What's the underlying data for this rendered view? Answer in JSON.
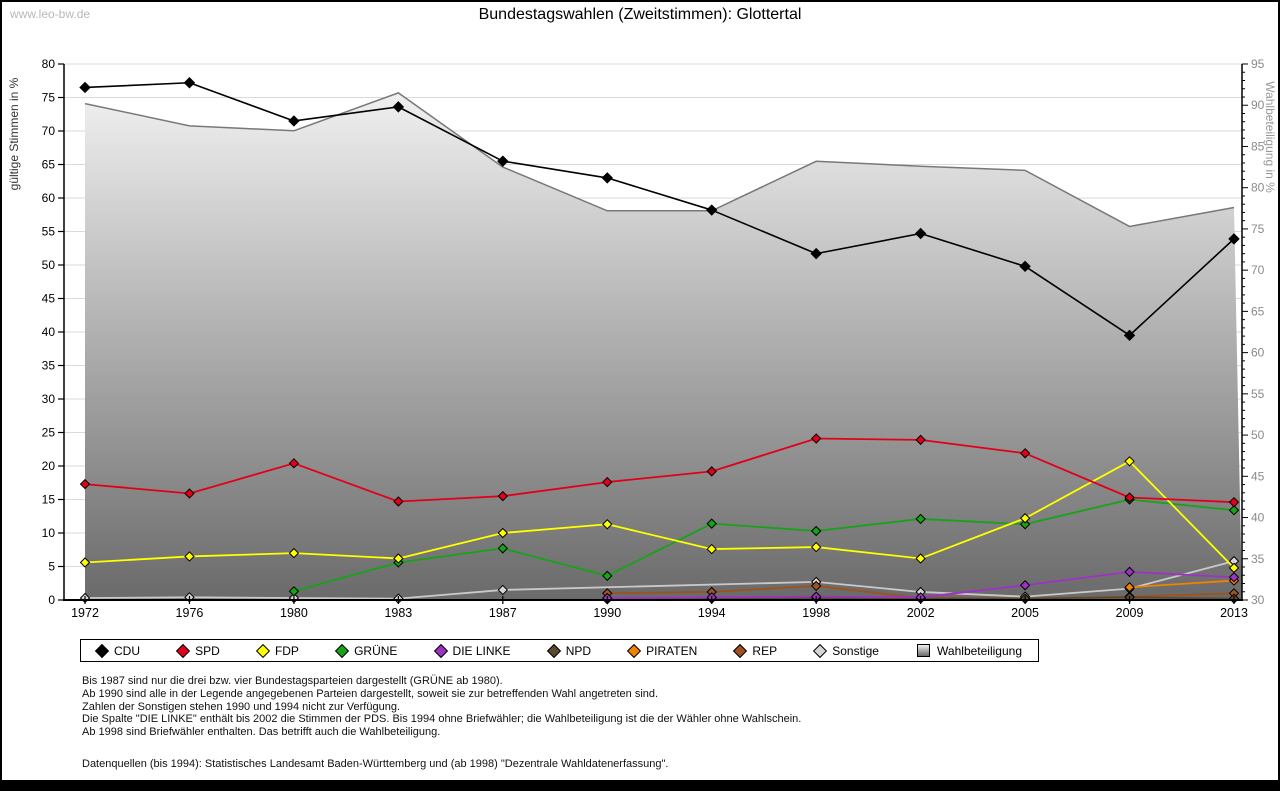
{
  "watermark": "www.leo-bw.de",
  "title": "Bundestagswahlen (Zweitstimmen): Glottertal",
  "chart_data": {
    "type": "line",
    "x": [
      1972,
      1976,
      1980,
      1983,
      1987,
      1990,
      1994,
      1998,
      2002,
      2005,
      2009,
      2013
    ],
    "left_axis": {
      "label": "gültige Stimmen in %",
      "min": 0,
      "max": 80,
      "step": 5
    },
    "right_axis": {
      "label": "Wahlbeteiligung in %",
      "min": 30,
      "max": 95,
      "step": 5
    },
    "grid": "horizontal-every-5",
    "legend_position": "bottom",
    "series": [
      {
        "name": "CDU",
        "color": "#000000",
        "axis": "left",
        "marker": "diamond",
        "values": [
          76.5,
          77.2,
          71.5,
          73.6,
          65.5,
          63.0,
          58.2,
          51.7,
          54.7,
          49.8,
          39.5,
          53.9
        ]
      },
      {
        "name": "SPD",
        "color": "#e1001a",
        "axis": "left",
        "marker": "diamond",
        "values": [
          17.3,
          15.9,
          20.4,
          14.7,
          15.5,
          17.6,
          19.2,
          24.1,
          23.9,
          21.9,
          15.3,
          14.6
        ]
      },
      {
        "name": "FDP",
        "color": "#ffff00",
        "axis": "left",
        "marker": "diamond",
        "values": [
          5.6,
          6.5,
          7.0,
          6.2,
          10.0,
          11.3,
          7.6,
          7.9,
          6.2,
          12.2,
          20.7,
          4.8
        ]
      },
      {
        "name": "GRÜNE",
        "color": "#17a317",
        "axis": "left",
        "marker": "diamond",
        "values": [
          null,
          null,
          1.3,
          5.6,
          7.7,
          3.6,
          11.4,
          10.3,
          12.1,
          11.3,
          15.0,
          13.4
        ]
      },
      {
        "name": "DIE LINKE",
        "color": "#9d33c4",
        "axis": "left",
        "marker": "diamond",
        "values": [
          null,
          null,
          null,
          null,
          null,
          0.3,
          0.4,
          0.5,
          0.4,
          2.2,
          4.2,
          3.4
        ]
      },
      {
        "name": "NPD",
        "color": "#5c4a2e",
        "axis": "left",
        "marker": "diamond",
        "values": [
          null,
          null,
          null,
          null,
          null,
          0.1,
          0.2,
          0.3,
          0.2,
          0.2,
          0.4,
          0.2
        ]
      },
      {
        "name": "PIRATEN",
        "color": "#ef8200",
        "axis": "left",
        "marker": "diamond",
        "values": [
          null,
          null,
          null,
          null,
          null,
          null,
          null,
          null,
          null,
          null,
          1.9,
          2.9
        ]
      },
      {
        "name": "REP",
        "color": "#9c531f",
        "axis": "left",
        "marker": "diamond",
        "values": [
          null,
          null,
          null,
          null,
          null,
          1.0,
          1.2,
          2.1,
          0.3,
          0.2,
          0.5,
          1.0
        ]
      },
      {
        "name": "Sonstige",
        "color": "#d6d6d6",
        "line_color": "#c9c9c9",
        "axis": "left",
        "marker": "diamond",
        "values": [
          0.3,
          0.4,
          0.3,
          0.2,
          1.5,
          null,
          null,
          2.7,
          1.2,
          0.5,
          1.7,
          5.8
        ]
      },
      {
        "name": "Wahlbeteiligung",
        "type": "area",
        "color": "#787878",
        "fill_top": "#f0f0f0",
        "fill_bottom": "#6a6a6a",
        "axis": "right",
        "marker": "square",
        "values": [
          90.2,
          87.5,
          86.9,
          91.5,
          82.5,
          77.2,
          77.2,
          83.2,
          82.6,
          82.1,
          75.3,
          77.6
        ]
      }
    ]
  },
  "footnotes": [
    "Bis 1987 sind nur die drei bzw. vier Bundestagsparteien dargestellt (GRÜNE ab 1980).",
    "Ab 1990 sind alle in der Legende angegebenen Parteien dargestellt, soweit sie zur betreffenden Wahl angetreten sind.",
    "Zahlen der Sonstigen stehen 1990 und 1994 nicht zur Verfügung.",
    "Die Spalte \"DIE LINKE\" enthält bis 2002 die Stimmen der PDS. Bis 1994 ohne Briefwähler; die Wahlbeteiligung ist die der Wähler ohne Wahlschein.",
    "Ab 1998 sind Briefwähler enthalten. Das betrifft auch die Wahlbeteiligung.",
    "",
    "Datenquellen (bis 1994): Statistisches Landesamt Baden-Württemberg und (ab 1998) \"Dezentrale Wahldatenerfassung\"."
  ]
}
